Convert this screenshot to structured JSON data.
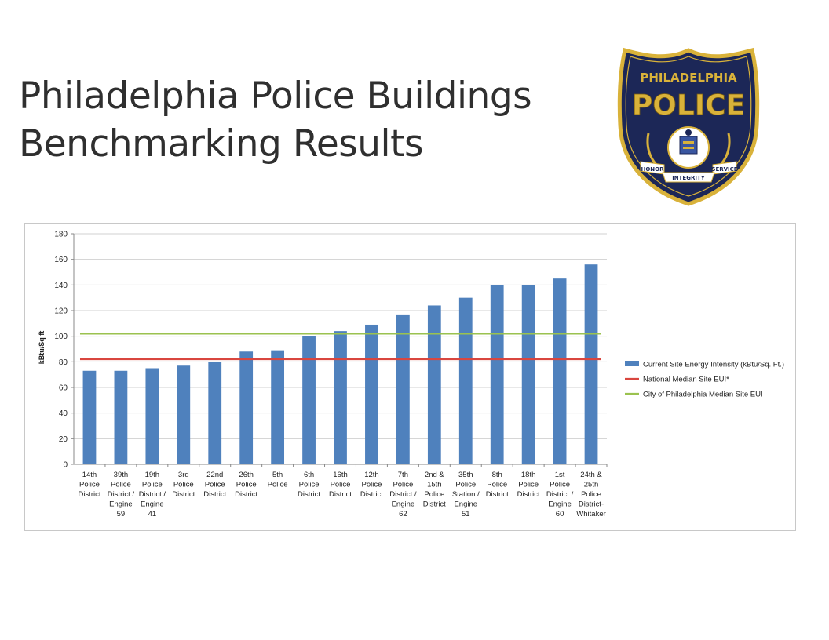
{
  "slide": {
    "title_line1": "Philadelphia Police Buildings",
    "title_line2": "Benchmarking Results"
  },
  "badge": {
    "top_text": "PHILADELPHIA",
    "main_text": "POLICE",
    "left_banner": "HONOR",
    "right_banner": "SERVICE",
    "bottom_banner": "INTEGRITY",
    "colors": {
      "navy": "#1c2757",
      "gold": "#d9b23a",
      "white": "#ffffff"
    }
  },
  "chart_data": {
    "type": "bar",
    "title": "",
    "xlabel": "",
    "ylabel": "kBtu/Sq ft",
    "ylim": [
      0,
      180
    ],
    "yticks": [
      0,
      20,
      40,
      60,
      80,
      100,
      120,
      140,
      160,
      180
    ],
    "grid": true,
    "legend_position": "right",
    "categories": [
      [
        "14th",
        "Police",
        "District"
      ],
      [
        "39th",
        "Police",
        "District /",
        "Engine",
        "59"
      ],
      [
        "19th",
        "Police",
        "District /",
        "Engine",
        "41"
      ],
      [
        "3rd",
        "Police",
        "District"
      ],
      [
        "22nd",
        "Police",
        "District"
      ],
      [
        "26th",
        "Police",
        "District"
      ],
      [
        "5th",
        "Police"
      ],
      [
        "6th",
        "Police",
        "District"
      ],
      [
        "16th",
        "Police",
        "District"
      ],
      [
        "12th",
        "Police",
        "District"
      ],
      [
        "7th",
        "Police",
        "District /",
        "Engine",
        "62"
      ],
      [
        "2nd &",
        "15th",
        "Police",
        "District"
      ],
      [
        "35th",
        "Police",
        "Station /",
        "Engine",
        "51"
      ],
      [
        "8th",
        "Police",
        "District"
      ],
      [
        "18th",
        "Police",
        "District"
      ],
      [
        "1st",
        "Police",
        "District /",
        "Engine",
        "60"
      ],
      [
        "24th &",
        "25th",
        "Police",
        "District-",
        "Whitaker"
      ]
    ],
    "series": [
      {
        "name": "Current Site Energy Intensity (kBtu/Sq. Ft.)",
        "kind": "bar",
        "color": "#4f81bd",
        "values": [
          73,
          73,
          75,
          77,
          80,
          88,
          89,
          100,
          104,
          109,
          117,
          124,
          130,
          140,
          140,
          145,
          156
        ]
      },
      {
        "name": "National Median Site EUI*",
        "kind": "line",
        "color": "#d9463f",
        "value": 82
      },
      {
        "name": "City of Philadelphia Median Site EUI",
        "kind": "line",
        "color": "#9bc24f",
        "value": 102
      }
    ]
  }
}
